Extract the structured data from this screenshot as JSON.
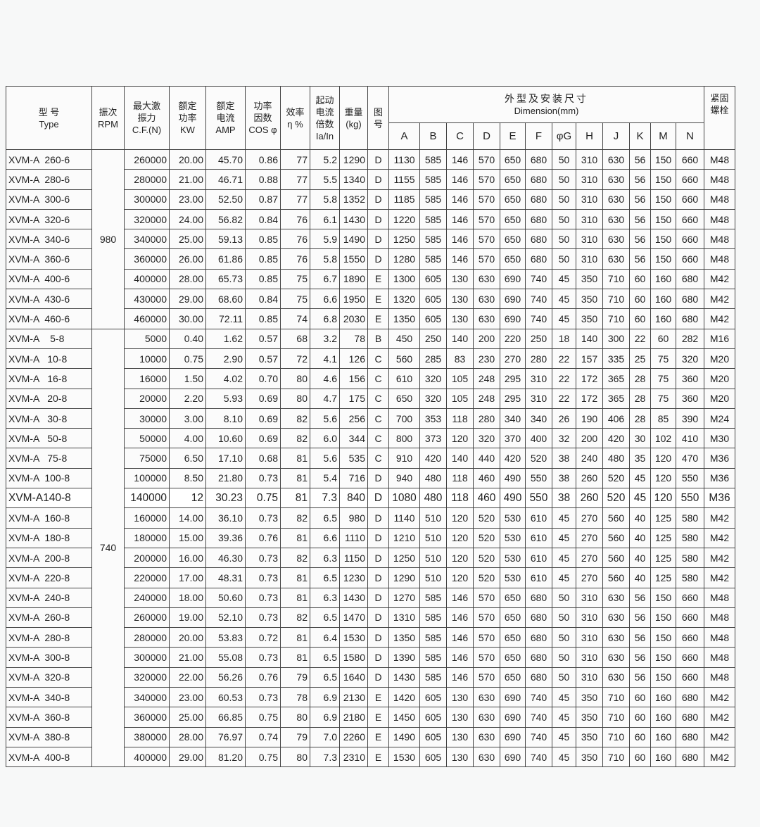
{
  "header": {
    "type": [
      "型 号",
      "Type"
    ],
    "rpm": [
      "振次",
      "RPM"
    ],
    "cf": [
      "最大激",
      "振力",
      "C.F.(N)"
    ],
    "kw": [
      "额定",
      "功率",
      "KW"
    ],
    "amp": [
      "额定",
      "电流",
      "AMP"
    ],
    "cos": [
      "功率",
      "因数",
      "COS φ"
    ],
    "eff": [
      "效率",
      "η %"
    ],
    "start": [
      "起动",
      "电流",
      "倍数",
      "Ia/In"
    ],
    "weight": [
      "重量",
      "(kg)"
    ],
    "fig": [
      "图",
      "号"
    ],
    "dimension_cn": "外型及安装尺寸",
    "dimension_en": "Dimension(mm)",
    "dim_cols": [
      "A",
      "B",
      "C",
      "D",
      "E",
      "F",
      "φG",
      "H",
      "J",
      "K",
      "M",
      "N"
    ],
    "bolt": [
      "紧固",
      "螺栓"
    ]
  },
  "rpm_groups": [
    {
      "rpm": "980",
      "rows": 9
    },
    {
      "rpm": "740",
      "rows": 22
    }
  ],
  "rows": [
    [
      "XVM-A  260-6",
      "260000",
      "20.00",
      "45.70",
      "0.86",
      "77",
      "5.2",
      "1290",
      "D",
      "1130",
      "585",
      "146",
      "570",
      "650",
      "680",
      "50",
      "310",
      "630",
      "56",
      "150",
      "660",
      "M48"
    ],
    [
      "XVM-A  280-6",
      "280000",
      "21.00",
      "46.71",
      "0.88",
      "77",
      "5.5",
      "1340",
      "D",
      "1155",
      "585",
      "146",
      "570",
      "650",
      "680",
      "50",
      "310",
      "630",
      "56",
      "150",
      "660",
      "M48"
    ],
    [
      "XVM-A  300-6",
      "300000",
      "23.00",
      "52.50",
      "0.87",
      "77",
      "5.8",
      "1352",
      "D",
      "1185",
      "585",
      "146",
      "570",
      "650",
      "680",
      "50",
      "310",
      "630",
      "56",
      "150",
      "660",
      "M48"
    ],
    [
      "XVM-A  320-6",
      "320000",
      "24.00",
      "56.82",
      "0.84",
      "76",
      "6.1",
      "1430",
      "D",
      "1220",
      "585",
      "146",
      "570",
      "650",
      "680",
      "50",
      "310",
      "630",
      "56",
      "150",
      "660",
      "M48"
    ],
    [
      "XVM-A  340-6",
      "340000",
      "25.00",
      "59.13",
      "0.85",
      "76",
      "5.9",
      "1490",
      "D",
      "1250",
      "585",
      "146",
      "570",
      "650",
      "680",
      "50",
      "310",
      "630",
      "56",
      "150",
      "660",
      "M48"
    ],
    [
      "XVM-A  360-6",
      "360000",
      "26.00",
      "61.86",
      "0.85",
      "76",
      "5.8",
      "1550",
      "D",
      "1280",
      "585",
      "146",
      "570",
      "650",
      "680",
      "50",
      "310",
      "630",
      "56",
      "150",
      "660",
      "M48"
    ],
    [
      "XVM-A  400-6",
      "400000",
      "28.00",
      "65.73",
      "0.85",
      "75",
      "6.7",
      "1890",
      "E",
      "1300",
      "605",
      "130",
      "630",
      "690",
      "740",
      "45",
      "350",
      "710",
      "60",
      "160",
      "680",
      "M42"
    ],
    [
      "XVM-A  430-6",
      "430000",
      "29.00",
      "68.60",
      "0.84",
      "75",
      "6.6",
      "1950",
      "E",
      "1320",
      "605",
      "130",
      "630",
      "690",
      "740",
      "45",
      "350",
      "710",
      "60",
      "160",
      "680",
      "M42"
    ],
    [
      "XVM-A  460-6",
      "460000",
      "30.00",
      "72.11",
      "0.85",
      "74",
      "6.8",
      "2030",
      "E",
      "1350",
      "605",
      "130",
      "630",
      "690",
      "740",
      "45",
      "350",
      "710",
      "60",
      "160",
      "680",
      "M42"
    ],
    [
      "XVM-A    5-8",
      "5000",
      "0.40",
      "1.62",
      "0.57",
      "68",
      "3.2",
      "78",
      "B",
      "450",
      "250",
      "140",
      "200",
      "220",
      "250",
      "18",
      "140",
      "300",
      "22",
      "60",
      "282",
      "M16"
    ],
    [
      "XVM-A   10-8",
      "10000",
      "0.75",
      "2.90",
      "0.57",
      "72",
      "4.1",
      "126",
      "C",
      "560",
      "285",
      "83",
      "230",
      "270",
      "280",
      "22",
      "157",
      "335",
      "25",
      "75",
      "320",
      "M20"
    ],
    [
      "XVM-A   16-8",
      "16000",
      "1.50",
      "4.02",
      "0.70",
      "80",
      "4.6",
      "156",
      "C",
      "610",
      "320",
      "105",
      "248",
      "295",
      "310",
      "22",
      "172",
      "365",
      "28",
      "75",
      "360",
      "M20"
    ],
    [
      "XVM-A   20-8",
      "20000",
      "2.20",
      "5.93",
      "0.69",
      "80",
      "4.7",
      "175",
      "C",
      "650",
      "320",
      "105",
      "248",
      "295",
      "310",
      "22",
      "172",
      "365",
      "28",
      "75",
      "360",
      "M20"
    ],
    [
      "XVM-A   30-8",
      "30000",
      "3.00",
      "8.10",
      "0.69",
      "82",
      "5.6",
      "256",
      "C",
      "700",
      "353",
      "118",
      "280",
      "340",
      "340",
      "26",
      "190",
      "406",
      "28",
      "85",
      "390",
      "M24"
    ],
    [
      "XVM-A   50-8",
      "50000",
      "4.00",
      "10.60",
      "0.69",
      "82",
      "6.0",
      "344",
      "C",
      "800",
      "373",
      "120",
      "320",
      "370",
      "400",
      "32",
      "200",
      "420",
      "30",
      "102",
      "410",
      "M30"
    ],
    [
      "XVM-A   75-8",
      "75000",
      "6.50",
      "17.10",
      "0.68",
      "81",
      "5.6",
      "535",
      "C",
      "910",
      "420",
      "140",
      "440",
      "420",
      "520",
      "38",
      "240",
      "480",
      "35",
      "120",
      "470",
      "M36"
    ],
    [
      "XVM-A  100-8",
      "100000",
      "8.50",
      "21.80",
      "0.73",
      "81",
      "5.4",
      "716",
      "D",
      "940",
      "480",
      "118",
      "460",
      "490",
      "550",
      "38",
      "260",
      "520",
      "45",
      "120",
      "550",
      "M36"
    ],
    [
      "XVM-A140-8",
      "140000",
      "12",
      "30.23",
      "0.75",
      "81",
      "7.3",
      "840",
      "D",
      "1080",
      "480",
      "118",
      "460",
      "490",
      "550",
      "38",
      "260",
      "520",
      "45",
      "120",
      "550",
      "M36"
    ],
    [
      "XVM-A  160-8",
      "160000",
      "14.00",
      "36.10",
      "0.73",
      "82",
      "6.5",
      "980",
      "D",
      "1140",
      "510",
      "120",
      "520",
      "530",
      "610",
      "45",
      "270",
      "560",
      "40",
      "125",
      "580",
      "M42"
    ],
    [
      "XVM-A  180-8",
      "180000",
      "15.00",
      "39.36",
      "0.76",
      "81",
      "6.6",
      "1110",
      "D",
      "1210",
      "510",
      "120",
      "520",
      "530",
      "610",
      "45",
      "270",
      "560",
      "40",
      "125",
      "580",
      "M42"
    ],
    [
      "XVM-A  200-8",
      "200000",
      "16.00",
      "46.30",
      "0.73",
      "82",
      "6.3",
      "1150",
      "D",
      "1250",
      "510",
      "120",
      "520",
      "530",
      "610",
      "45",
      "270",
      "560",
      "40",
      "125",
      "580",
      "M42"
    ],
    [
      "XVM-A  220-8",
      "220000",
      "17.00",
      "48.31",
      "0.73",
      "81",
      "6.5",
      "1230",
      "D",
      "1290",
      "510",
      "120",
      "520",
      "530",
      "610",
      "45",
      "270",
      "560",
      "40",
      "125",
      "580",
      "M42"
    ],
    [
      "XVM-A  240-8",
      "240000",
      "18.00",
      "50.60",
      "0.73",
      "81",
      "6.3",
      "1430",
      "D",
      "1270",
      "585",
      "146",
      "570",
      "650",
      "680",
      "50",
      "310",
      "630",
      "56",
      "150",
      "660",
      "M48"
    ],
    [
      "XVM-A  260-8",
      "260000",
      "19.00",
      "52.10",
      "0.73",
      "82",
      "6.5",
      "1470",
      "D",
      "1310",
      "585",
      "146",
      "570",
      "650",
      "680",
      "50",
      "310",
      "630",
      "56",
      "150",
      "660",
      "M48"
    ],
    [
      "XVM-A  280-8",
      "280000",
      "20.00",
      "53.83",
      "0.72",
      "81",
      "6.4",
      "1530",
      "D",
      "1350",
      "585",
      "146",
      "570",
      "650",
      "680",
      "50",
      "310",
      "630",
      "56",
      "150",
      "660",
      "M48"
    ],
    [
      "XVM-A  300-8",
      "300000",
      "21.00",
      "55.08",
      "0.73",
      "81",
      "6.5",
      "1580",
      "D",
      "1390",
      "585",
      "146",
      "570",
      "650",
      "680",
      "50",
      "310",
      "630",
      "56",
      "150",
      "660",
      "M48"
    ],
    [
      "XVM-A  320-8",
      "320000",
      "22.00",
      "56.26",
      "0.76",
      "79",
      "6.5",
      "1640",
      "D",
      "1430",
      "585",
      "146",
      "570",
      "650",
      "680",
      "50",
      "310",
      "630",
      "56",
      "150",
      "660",
      "M48"
    ],
    [
      "XVM-A  340-8",
      "340000",
      "23.00",
      "60.53",
      "0.73",
      "78",
      "6.9",
      "2130",
      "E",
      "1420",
      "605",
      "130",
      "630",
      "690",
      "740",
      "45",
      "350",
      "710",
      "60",
      "160",
      "680",
      "M42"
    ],
    [
      "XVM-A  360-8",
      "360000",
      "25.00",
      "66.85",
      "0.75",
      "80",
      "6.9",
      "2180",
      "E",
      "1450",
      "605",
      "130",
      "630",
      "690",
      "740",
      "45",
      "350",
      "710",
      "60",
      "160",
      "680",
      "M42"
    ],
    [
      "XVM-A  380-8",
      "380000",
      "28.00",
      "76.97",
      "0.74",
      "79",
      "7.0",
      "2260",
      "E",
      "1490",
      "605",
      "130",
      "630",
      "690",
      "740",
      "45",
      "350",
      "710",
      "60",
      "160",
      "680",
      "M42"
    ],
    [
      "XVM-A  400-8",
      "400000",
      "29.00",
      "81.20",
      "0.75",
      "80",
      "7.3",
      "2310",
      "E",
      "1530",
      "605",
      "130",
      "630",
      "690",
      "740",
      "45",
      "350",
      "710",
      "60",
      "160",
      "680",
      "M42"
    ]
  ]
}
